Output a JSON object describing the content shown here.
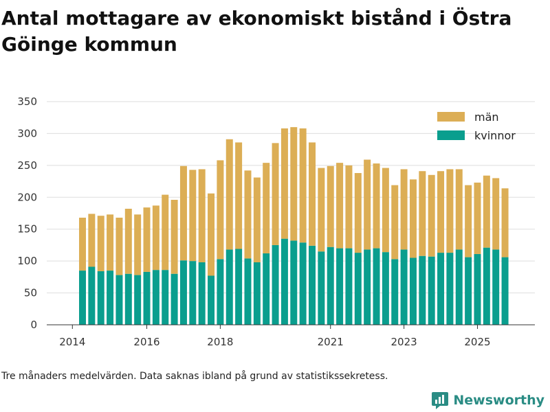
{
  "page": {
    "title": "Antal mottagare av ekonomiskt bistånd i Östra Göinge kommun",
    "footnote": "Tre månaders medelvärden. Data saknas ibland på grund av statistikssekretess.",
    "brand": "Newsworthy"
  },
  "colors": {
    "men": "#dcae55",
    "women": "#0a9e8e",
    "grid": "#dddddd",
    "axis": "#333333",
    "brand": "#2a8c84"
  },
  "chart_data": {
    "type": "bar",
    "stacked": true,
    "title": "Antal mottagare av ekonomiskt bistånd i Östra Göinge kommun",
    "xlabel": "",
    "ylabel": "",
    "ylim": [
      0,
      350
    ],
    "yticks": [
      0,
      50,
      100,
      150,
      200,
      250,
      300,
      350
    ],
    "xticks": [
      {
        "label": "2014",
        "index": -1.1
      },
      {
        "label": "2016",
        "index": 7.0
      },
      {
        "label": "2018",
        "index": 15.0
      },
      {
        "label": "2021",
        "index": 27.0
      },
      {
        "label": "2023",
        "index": 35.0
      },
      {
        "label": "2025",
        "index": 43.0
      }
    ],
    "grid": true,
    "legend_position": "top-right",
    "series": [
      {
        "name": "kvinnor",
        "values": [
          85,
          91,
          84,
          85,
          78,
          80,
          78,
          83,
          86,
          86,
          80,
          101,
          100,
          98,
          77,
          103,
          118,
          119,
          104,
          98,
          112,
          125,
          135,
          132,
          129,
          124,
          115,
          122,
          120,
          120,
          113,
          118,
          120,
          114,
          103,
          118,
          105,
          108,
          107,
          113,
          113,
          118,
          106,
          111,
          121,
          118,
          106
        ]
      },
      {
        "name": "män",
        "values": [
          83,
          83,
          87,
          88,
          90,
          102,
          95,
          101,
          101,
          118,
          116,
          148,
          143,
          146,
          129,
          155,
          173,
          167,
          138,
          133,
          142,
          160,
          173,
          178,
          179,
          162,
          131,
          127,
          134,
          130,
          125,
          141,
          133,
          132,
          116,
          126,
          123,
          133,
          128,
          128,
          131,
          126,
          113,
          112,
          113,
          112,
          108
        ]
      }
    ],
    "legend": [
      "män",
      "kvinnor"
    ]
  }
}
